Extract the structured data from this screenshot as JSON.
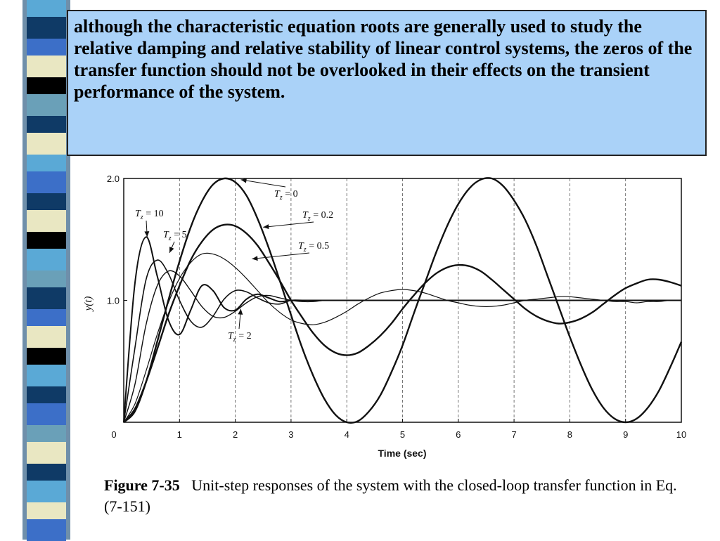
{
  "slide": {
    "callout_text": " although the characteristic equation roots are generally used to study the relative damping and relative stability of linear control systems, the zeros of the transfer function should not be overlooked in their effects on the transient performance of the system.",
    "figure_label": "Figure 7-35",
    "figure_caption": "Unit-step responses of the system with the closed-loop transfer function in Eq. (7-151)"
  },
  "colors": {
    "callout_bg": "#aad2f8",
    "stripe_palette": [
      "#5aa9d6",
      "#0f3a66",
      "#3c6fc8",
      "#e9e7c2",
      "#000000",
      "#6aa0b8"
    ]
  },
  "chart_data": {
    "type": "line",
    "xlabel": "Time (sec)",
    "ylabel": "y(t)",
    "xlim": [
      0,
      10
    ],
    "ylim": [
      0,
      2.0
    ],
    "x_ticks": [
      "0",
      "1",
      "2",
      "3",
      "4",
      "5",
      "6",
      "7",
      "8",
      "9",
      "10"
    ],
    "y_ticks": [
      "0",
      "1.0",
      "2.0"
    ],
    "grid": "vertical dashed",
    "x": [
      0,
      0.2,
      0.4,
      0.6,
      0.8,
      1.0,
      1.2,
      1.4,
      1.6,
      1.8,
      2.0,
      2.2,
      2.4,
      2.6,
      2.8,
      3.0,
      3.2,
      3.4,
      3.6,
      3.8,
      4.0,
      4.2,
      4.4,
      4.6,
      4.8,
      5.0,
      5.2,
      5.4,
      5.6,
      5.8,
      6.0,
      6.2,
      6.4,
      6.6,
      6.8,
      7.0,
      7.2,
      7.4,
      7.6,
      7.8,
      8.0,
      8.2,
      8.4,
      8.6,
      8.8,
      9.0,
      9.2,
      9.4,
      9.6,
      9.8,
      10.0
    ],
    "series": [
      {
        "name": "Tz = 0",
        "values": [
          0.0,
          0.09,
          0.33,
          0.66,
          1.0,
          1.32,
          1.6,
          1.81,
          1.95,
          2.0,
          1.97,
          1.86,
          1.67,
          1.43,
          1.16,
          0.88,
          0.61,
          0.38,
          0.19,
          0.06,
          0.0,
          0.01,
          0.09,
          0.22,
          0.41,
          0.63,
          0.89,
          1.14,
          1.39,
          1.61,
          1.79,
          1.92,
          1.99,
          2.0,
          1.94,
          1.82,
          1.66,
          1.45,
          1.2,
          0.95,
          0.7,
          0.47,
          0.27,
          0.12,
          0.03,
          0.0,
          0.03,
          0.12,
          0.26,
          0.45,
          0.66
        ]
      },
      {
        "name": "Tz = 0.2",
        "values": [
          0.0,
          0.11,
          0.33,
          0.6,
          0.88,
          1.12,
          1.33,
          1.48,
          1.58,
          1.62,
          1.61,
          1.55,
          1.45,
          1.31,
          1.16,
          1.0,
          0.86,
          0.73,
          0.63,
          0.57,
          0.55,
          0.57,
          0.63,
          0.71,
          0.81,
          0.93,
          1.04,
          1.14,
          1.22,
          1.27,
          1.29,
          1.28,
          1.24,
          1.17,
          1.09,
          1.01,
          0.93,
          0.87,
          0.83,
          0.81,
          0.82,
          0.85,
          0.9,
          0.97,
          1.04,
          1.1,
          1.14,
          1.17,
          1.17,
          1.15,
          1.12
        ]
      },
      {
        "name": "Tz = 0.5",
        "values": [
          0.0,
          0.15,
          0.42,
          0.72,
          0.98,
          1.18,
          1.31,
          1.38,
          1.38,
          1.34,
          1.27,
          1.18,
          1.08,
          0.98,
          0.9,
          0.84,
          0.81,
          0.8,
          0.82,
          0.86,
          0.91,
          0.97,
          1.02,
          1.06,
          1.08,
          1.09,
          1.08,
          1.06,
          1.03,
          1.0,
          0.98,
          0.96,
          0.95,
          0.95,
          0.96,
          0.98,
          1.0,
          1.01,
          1.02,
          1.03,
          1.03,
          1.02,
          1.01,
          1.0,
          0.99,
          0.99,
          0.98,
          0.99,
          0.99,
          1.0,
          1.0
        ]
      },
      {
        "name": "Tz = 2",
        "values": [
          0.0,
          0.31,
          0.8,
          1.12,
          1.24,
          1.2,
          1.08,
          0.95,
          0.87,
          0.86,
          0.91,
          0.98,
          1.03,
          1.04,
          1.02,
          1.0,
          0.99,
          0.99,
          1.0,
          1.0,
          1.0,
          1.0,
          1.0,
          1.0,
          1.0,
          1.0,
          1.0,
          1.0,
          1.0,
          1.0,
          1.0,
          1.0,
          1.0,
          1.0,
          1.0,
          1.0,
          1.0,
          1.0,
          1.0,
          1.0,
          1.0,
          1.0,
          1.0,
          1.0,
          1.0,
          1.0,
          1.0,
          1.0,
          1.0,
          1.0,
          1.0
        ]
      },
      {
        "name": "Tz = 5",
        "values": [
          0.0,
          0.61,
          1.17,
          1.33,
          1.22,
          1.0,
          0.83,
          0.78,
          0.87,
          1.01,
          1.08,
          1.07,
          1.02,
          0.98,
          0.97,
          1.0,
          1.0,
          1.0,
          1.0,
          1.0,
          1.0,
          1.0,
          1.0,
          1.0,
          1.0,
          1.0,
          1.0,
          1.0,
          1.0,
          1.0,
          1.0,
          1.0,
          1.0,
          1.0,
          1.0,
          1.0,
          1.0,
          1.0,
          1.0,
          1.0,
          1.0,
          1.0,
          1.0,
          1.0,
          1.0,
          1.0,
          1.0,
          1.0,
          1.0,
          1.0,
          1.0
        ]
      },
      {
        "name": "Tz = 10",
        "values": [
          0.0,
          1.14,
          1.52,
          1.2,
          0.84,
          0.72,
          0.92,
          1.12,
          1.08,
          0.94,
          0.92,
          1.01,
          1.05,
          1.02,
          0.99,
          1.0,
          1.0,
          1.0,
          1.0,
          1.0,
          1.0,
          1.0,
          1.0,
          1.0,
          1.0,
          1.0,
          1.0,
          1.0,
          1.0,
          1.0,
          1.0,
          1.0,
          1.0,
          1.0,
          1.0,
          1.0,
          1.0,
          1.0,
          1.0,
          1.0,
          1.0,
          1.0,
          1.0,
          1.0,
          1.0,
          1.0,
          1.0,
          1.0,
          1.0,
          1.0,
          1.0
        ]
      }
    ],
    "annotations": [
      {
        "label": "T",
        "sub": "z",
        "value": "= 0",
        "points_to": {
          "x": 2.1,
          "y": 1.99
        }
      },
      {
        "label": "T",
        "sub": "z",
        "value": "= 0.2",
        "points_to": {
          "x": 2.5,
          "y": 1.6
        }
      },
      {
        "label": "T",
        "sub": "z",
        "value": "= 0.5",
        "points_to": {
          "x": 2.3,
          "y": 1.34
        }
      },
      {
        "label": "T",
        "sub": "z",
        "value": "= 10",
        "points_to": {
          "x": 0.42,
          "y": 1.52
        }
      },
      {
        "label": "T",
        "sub": "z",
        "value": "= 5",
        "points_to": {
          "x": 0.82,
          "y": 1.39
        }
      },
      {
        "label": "T",
        "sub": "z",
        "value": "= 2",
        "points_to": {
          "x": 2.1,
          "y": 0.93
        }
      }
    ]
  }
}
